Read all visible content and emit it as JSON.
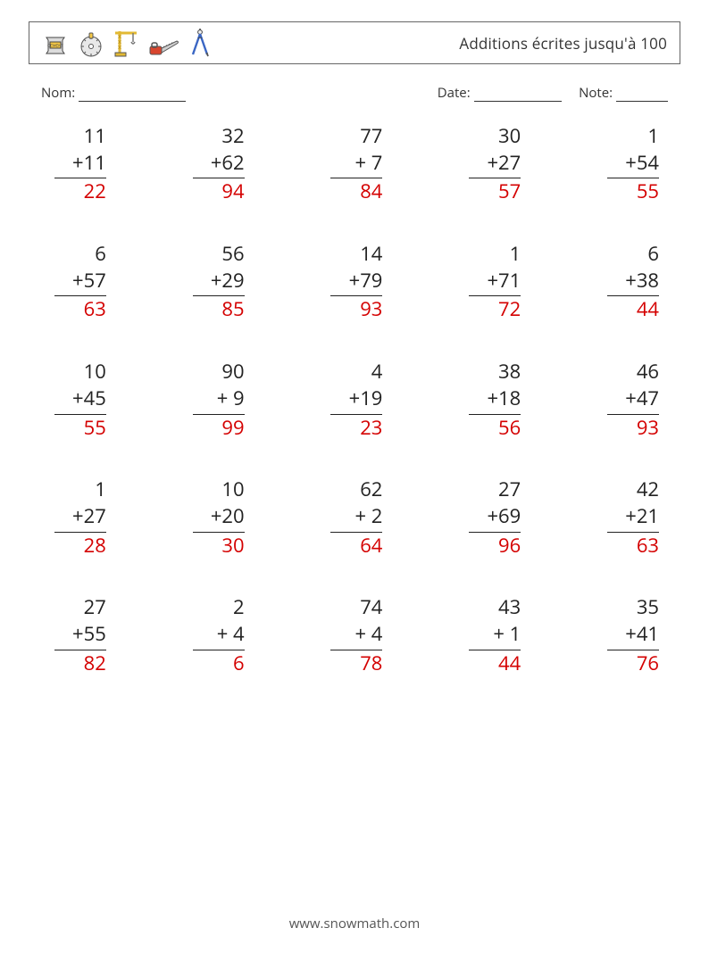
{
  "header": {
    "title": "Additions écrites jusqu'à 100",
    "icons": [
      "cement-bag-icon",
      "saw-blade-icon",
      "crane-icon",
      "chainsaw-icon",
      "compass-icon"
    ]
  },
  "meta": {
    "name_label": "Nom:",
    "date_label": "Date:",
    "note_label": "Note:"
  },
  "worksheet": {
    "type": "grid",
    "columns": 5,
    "rows": 5,
    "operator": "+",
    "problem_fontsize": 22,
    "answer_fontsize": 22,
    "ink_color": "#222222",
    "answer_color": "#d40000",
    "rule_color": "#222222",
    "problems": [
      {
        "a": 11,
        "b": 11,
        "ans": 22
      },
      {
        "a": 32,
        "b": 62,
        "ans": 94
      },
      {
        "a": 77,
        "b": 7,
        "ans": 84
      },
      {
        "a": 30,
        "b": 27,
        "ans": 57
      },
      {
        "a": 1,
        "b": 54,
        "ans": 55
      },
      {
        "a": 6,
        "b": 57,
        "ans": 63
      },
      {
        "a": 56,
        "b": 29,
        "ans": 85
      },
      {
        "a": 14,
        "b": 79,
        "ans": 93
      },
      {
        "a": 1,
        "b": 71,
        "ans": 72
      },
      {
        "a": 6,
        "b": 38,
        "ans": 44
      },
      {
        "a": 10,
        "b": 45,
        "ans": 55
      },
      {
        "a": 90,
        "b": 9,
        "ans": 99
      },
      {
        "a": 4,
        "b": 19,
        "ans": 23
      },
      {
        "a": 38,
        "b": 18,
        "ans": 56
      },
      {
        "a": 46,
        "b": 47,
        "ans": 93
      },
      {
        "a": 1,
        "b": 27,
        "ans": 28
      },
      {
        "a": 10,
        "b": 20,
        "ans": 30
      },
      {
        "a": 62,
        "b": 2,
        "ans": 64
      },
      {
        "a": 27,
        "b": 69,
        "ans": 96
      },
      {
        "a": 42,
        "b": 21,
        "ans": 63
      },
      {
        "a": 27,
        "b": 55,
        "ans": 82
      },
      {
        "a": 2,
        "b": 4,
        "ans": 6
      },
      {
        "a": 74,
        "b": 4,
        "ans": 78
      },
      {
        "a": 43,
        "b": 1,
        "ans": 44
      },
      {
        "a": 35,
        "b": 41,
        "ans": 76
      }
    ]
  },
  "footer": {
    "text": "www.snowmath.com"
  }
}
